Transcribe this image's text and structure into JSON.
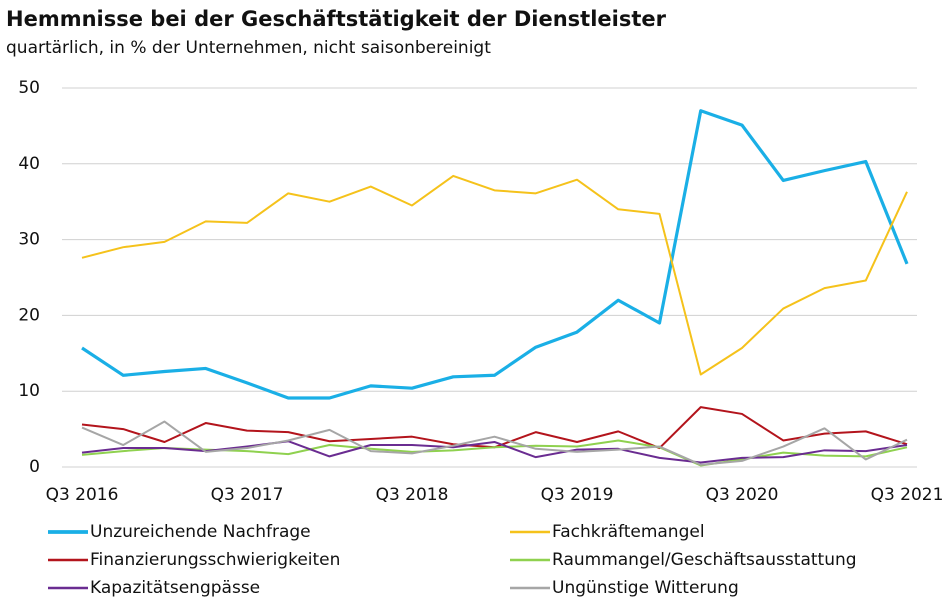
{
  "chart_data": {
    "type": "line",
    "title": "Hemmnisse bei der Geschäftstätigkeit der Dienstleister",
    "subtitle": "quartärlich, in % der Unternehmen, nicht saisonbereinigt",
    "categories": [
      "Q3 2016",
      null,
      null,
      null,
      "Q3 2017",
      null,
      null,
      null,
      "Q3 2018",
      null,
      null,
      null,
      "Q3 2019",
      null,
      null,
      null,
      "Q3 2020",
      null,
      null,
      null,
      "Q3 2021"
    ],
    "ylim": [
      0,
      50
    ],
    "yticks": [
      0,
      10,
      20,
      30,
      40,
      50
    ],
    "grid": true,
    "series": [
      {
        "name": "Unzureichende Nachfrage",
        "color": "#1aafe6",
        "width": 3.2,
        "values": [
          15.7,
          12.1,
          12.6,
          13.0,
          11.1,
          9.1,
          9.1,
          10.7,
          10.4,
          11.9,
          12.1,
          15.8,
          17.8,
          22.0,
          19.0,
          47.0,
          45.1,
          37.8,
          39.1,
          40.3,
          26.8
        ]
      },
      {
        "name": "Fachkräftemangel",
        "color": "#f5c21b",
        "width": 2,
        "values": [
          27.6,
          29.0,
          29.7,
          32.4,
          32.2,
          36.1,
          35.0,
          37.0,
          34.5,
          38.4,
          36.5,
          36.1,
          37.9,
          34.0,
          33.4,
          12.2,
          15.7,
          20.9,
          23.6,
          24.6,
          36.3
        ]
      },
      {
        "name": "Finanzierungsschwierigkeiten",
        "color": "#b3141c",
        "width": 2,
        "values": [
          5.6,
          5.0,
          3.3,
          5.8,
          4.8,
          4.6,
          3.4,
          3.7,
          4.0,
          3.0,
          2.6,
          4.6,
          3.3,
          4.7,
          2.5,
          7.9,
          7.0,
          3.5,
          4.4,
          4.7,
          3.0
        ]
      },
      {
        "name": "Raummangel/Geschäftsausstattung",
        "color": "#8fd14f",
        "width": 2,
        "values": [
          1.6,
          2.1,
          2.5,
          2.3,
          2.1,
          1.7,
          2.9,
          2.4,
          2.0,
          2.2,
          2.6,
          2.8,
          2.7,
          3.5,
          2.6,
          0.2,
          1.0,
          1.9,
          1.5,
          1.4,
          2.6
        ]
      },
      {
        "name": "Kapazitätsengpässe",
        "color": "#6a2c91",
        "width": 2,
        "values": [
          1.9,
          2.5,
          2.5,
          2.1,
          2.7,
          3.4,
          1.4,
          2.9,
          2.9,
          2.6,
          3.3,
          1.3,
          2.3,
          2.4,
          1.2,
          0.6,
          1.2,
          1.3,
          2.2,
          2.1,
          2.9
        ]
      },
      {
        "name": "Ungünstige Witterung",
        "color": "#a6a6a6",
        "width": 2,
        "values": [
          5.2,
          2.9,
          6.0,
          2.0,
          2.5,
          3.5,
          4.9,
          2.1,
          1.8,
          2.8,
          4.0,
          2.4,
          2.0,
          2.3,
          2.7,
          0.3,
          0.8,
          2.7,
          5.1,
          1.0,
          3.6
        ]
      }
    ]
  }
}
